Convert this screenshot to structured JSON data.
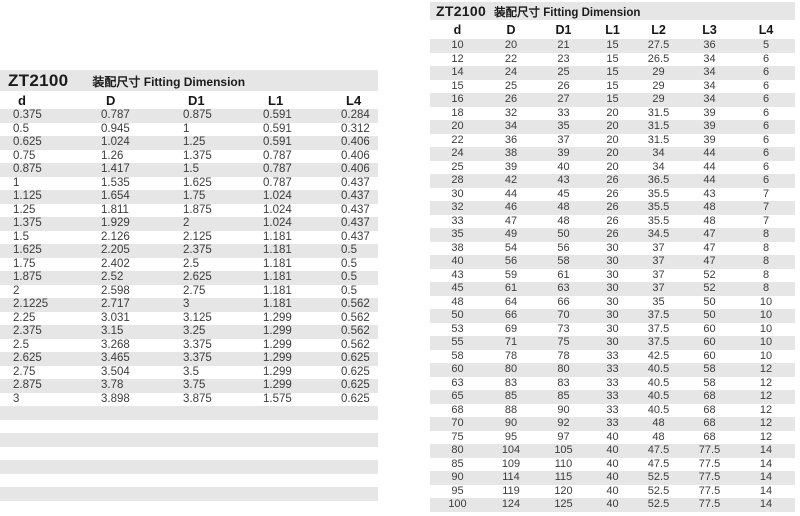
{
  "colors": {
    "stripe": "#e6e6e6",
    "title_band": "#e6e6e6",
    "data_text": "#3d3d3d",
    "heading_text": "#161616",
    "page_background": "#ffffff"
  },
  "left_table": {
    "model": "ZT2100",
    "subtitle_cn": "装配尺寸",
    "subtitle_en": "Fitting Dimension",
    "columns": [
      "d",
      "D",
      "D1",
      "L1",
      "L4"
    ],
    "rows": [
      [
        "0.375",
        "0.787",
        "0.875",
        "0.591",
        "0.284"
      ],
      [
        "0.5",
        "0.945",
        "1",
        "0.591",
        "0.312"
      ],
      [
        "0.625",
        "1.024",
        "1.25",
        "0.591",
        "0.406"
      ],
      [
        "0.75",
        "1.26",
        "1.375",
        "0.787",
        "0.406"
      ],
      [
        "0.875",
        "1.417",
        "1.5",
        "0.787",
        "0.406"
      ],
      [
        "1",
        "1.535",
        "1.625",
        "0.787",
        "0.437"
      ],
      [
        "1.125",
        "1.654",
        "1.75",
        "1.024",
        "0.437"
      ],
      [
        "1.25",
        "1.811",
        "1.875",
        "1.024",
        "0.437"
      ],
      [
        "1.375",
        "1.929",
        "2",
        "1.024",
        "0.437"
      ],
      [
        "1.5",
        "2.126",
        "2.125",
        "1.181",
        "0.437"
      ],
      [
        "1.625",
        "2.205",
        "2.375",
        "1.181",
        "0.5"
      ],
      [
        "1.75",
        "2.402",
        "2.5",
        "1.181",
        "0.5"
      ],
      [
        "1.875",
        "2.52",
        "2.625",
        "1.181",
        "0.5"
      ],
      [
        "2",
        "2.598",
        "2.75",
        "1.181",
        "0.5"
      ],
      [
        "2.1225",
        "2.717",
        "3",
        "1.181",
        "0.562"
      ],
      [
        "2.25",
        "3.031",
        "3.125",
        "1.299",
        "0.562"
      ],
      [
        "2.375",
        "3.15",
        "3.25",
        "1.299",
        "0.562"
      ],
      [
        "2.5",
        "3.268",
        "3.375",
        "1.299",
        "0.562"
      ],
      [
        "2.625",
        "3.465",
        "3.375",
        "1.299",
        "0.625"
      ],
      [
        "2.75",
        "3.504",
        "3.5",
        "1.299",
        "0.625"
      ],
      [
        "2.875",
        "3.78",
        "3.75",
        "1.299",
        "0.625"
      ],
      [
        "3",
        "3.898",
        "3.875",
        "1.575",
        "0.625"
      ]
    ],
    "empty_rows": 7
  },
  "right_table": {
    "model": "ZT2100",
    "subtitle_cn": "装配尺寸",
    "subtitle_en": "Fitting Dimension",
    "columns": [
      "d",
      "D",
      "D1",
      "L1",
      "L2",
      "L3",
      "L4"
    ],
    "rows": [
      [
        "10",
        "20",
        "21",
        "15",
        "27.5",
        "36",
        "5"
      ],
      [
        "12",
        "22",
        "23",
        "15",
        "26.5",
        "34",
        "6"
      ],
      [
        "14",
        "24",
        "25",
        "15",
        "29",
        "34",
        "6"
      ],
      [
        "15",
        "25",
        "26",
        "15",
        "29",
        "34",
        "6"
      ],
      [
        "16",
        "26",
        "27",
        "15",
        "29",
        "34",
        "6"
      ],
      [
        "18",
        "32",
        "33",
        "20",
        "31.5",
        "39",
        "6"
      ],
      [
        "20",
        "34",
        "35",
        "20",
        "31.5",
        "39",
        "6"
      ],
      [
        "22",
        "36",
        "37",
        "20",
        "31.5",
        "39",
        "6"
      ],
      [
        "24",
        "38",
        "39",
        "20",
        "34",
        "44",
        "6"
      ],
      [
        "25",
        "39",
        "40",
        "20",
        "34",
        "44",
        "6"
      ],
      [
        "28",
        "42",
        "43",
        "26",
        "36.5",
        "44",
        "6"
      ],
      [
        "30",
        "44",
        "45",
        "26",
        "35.5",
        "43",
        "7"
      ],
      [
        "32",
        "46",
        "48",
        "26",
        "35.5",
        "48",
        "7"
      ],
      [
        "33",
        "47",
        "48",
        "26",
        "35.5",
        "48",
        "7"
      ],
      [
        "35",
        "49",
        "50",
        "26",
        "34.5",
        "47",
        "8"
      ],
      [
        "38",
        "54",
        "56",
        "30",
        "37",
        "47",
        "8"
      ],
      [
        "40",
        "56",
        "58",
        "30",
        "37",
        "47",
        "8"
      ],
      [
        "43",
        "59",
        "61",
        "30",
        "37",
        "52",
        "8"
      ],
      [
        "45",
        "61",
        "63",
        "30",
        "37",
        "52",
        "8"
      ],
      [
        "48",
        "64",
        "66",
        "30",
        "35",
        "50",
        "10"
      ],
      [
        "50",
        "66",
        "70",
        "30",
        "37.5",
        "50",
        "10"
      ],
      [
        "53",
        "69",
        "73",
        "30",
        "37.5",
        "60",
        "10"
      ],
      [
        "55",
        "71",
        "75",
        "30",
        "37.5",
        "60",
        "10"
      ],
      [
        "58",
        "78",
        "78",
        "33",
        "42.5",
        "60",
        "10"
      ],
      [
        "60",
        "80",
        "80",
        "33",
        "40.5",
        "58",
        "12"
      ],
      [
        "63",
        "83",
        "83",
        "33",
        "40.5",
        "58",
        "12"
      ],
      [
        "65",
        "85",
        "85",
        "33",
        "40.5",
        "68",
        "12"
      ],
      [
        "68",
        "88",
        "90",
        "33",
        "40.5",
        "68",
        "12"
      ],
      [
        "70",
        "90",
        "92",
        "33",
        "48",
        "68",
        "12"
      ],
      [
        "75",
        "95",
        "97",
        "40",
        "48",
        "68",
        "12"
      ],
      [
        "80",
        "104",
        "105",
        "40",
        "47.5",
        "77.5",
        "14"
      ],
      [
        "85",
        "109",
        "110",
        "40",
        "47.5",
        "77.5",
        "14"
      ],
      [
        "90",
        "114",
        "115",
        "40",
        "52.5",
        "77.5",
        "14"
      ],
      [
        "95",
        "119",
        "120",
        "40",
        "52.5",
        "77.5",
        "14"
      ],
      [
        "100",
        "124",
        "125",
        "40",
        "52.5",
        "77.5",
        "14"
      ]
    ],
    "empty_rows": 0
  }
}
